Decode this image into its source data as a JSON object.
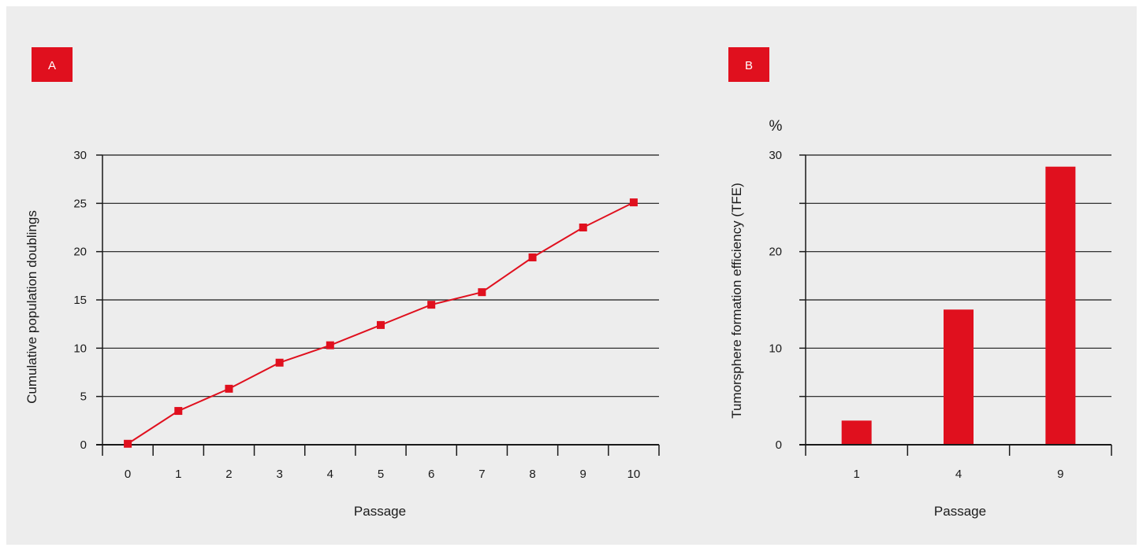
{
  "colors": {
    "accent": "#e0101e",
    "background": "#ededed",
    "ink": "#1a1a1a"
  },
  "chart_data": [
    {
      "panel": "A",
      "type": "line",
      "xlabel": "Passage",
      "ylabel": "Cumulative population doublings",
      "x": [
        0,
        1,
        2,
        3,
        4,
        5,
        6,
        7,
        8,
        9,
        10
      ],
      "y_ticks": [
        0,
        5,
        10,
        15,
        20,
        25,
        30
      ],
      "ylim": [
        0,
        30
      ],
      "grid": true,
      "series": [
        {
          "values": [
            0.1,
            3.5,
            5.8,
            8.5,
            10.3,
            12.4,
            14.5,
            15.8,
            19.4,
            22.5,
            25.1
          ]
        }
      ]
    },
    {
      "panel": "B",
      "type": "bar",
      "xlabel": "Passage",
      "ylabel": "Tumorsphere formation efficiency (TFE)",
      "unit": "%",
      "categories": [
        "1",
        "4",
        "9"
      ],
      "values": [
        2.5,
        14,
        28.8
      ],
      "y_ticks": [
        0,
        10,
        20,
        30
      ],
      "ylim": [
        0,
        30
      ],
      "grid": true
    }
  ]
}
